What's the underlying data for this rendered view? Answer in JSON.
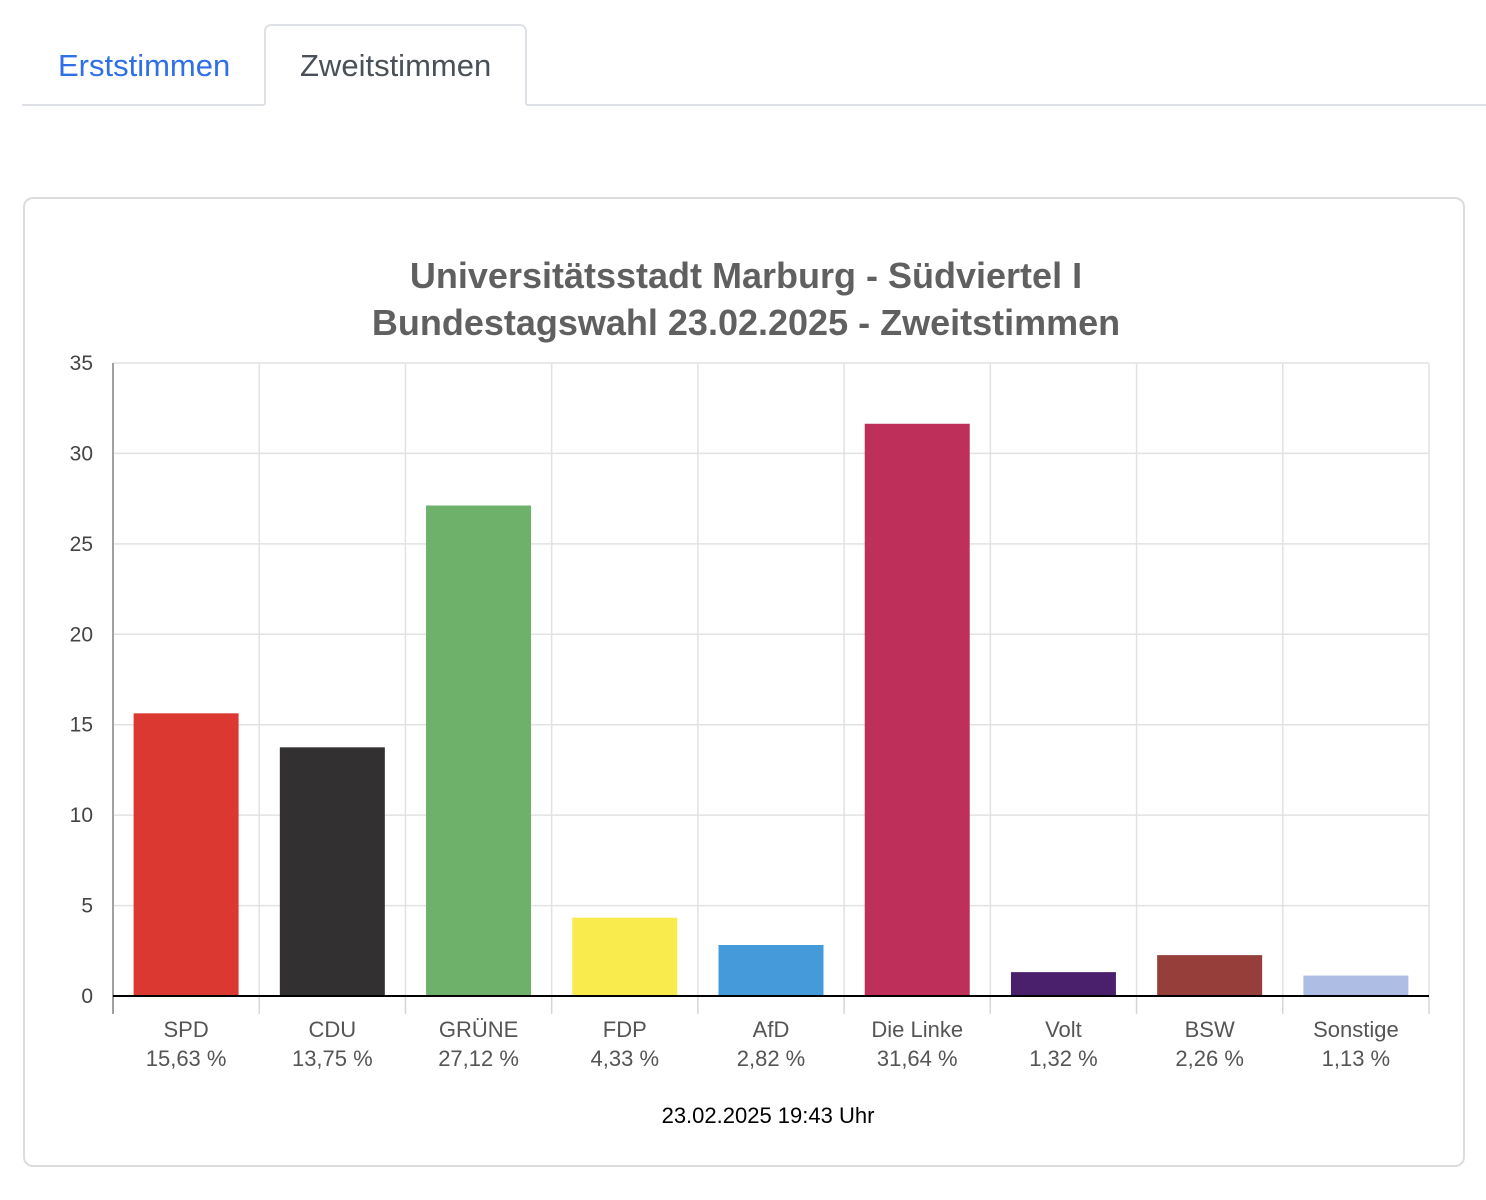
{
  "tabs": [
    {
      "label": "Erststimmen",
      "active": false
    },
    {
      "label": "Zweitstimmen",
      "active": true
    }
  ],
  "chart_data": {
    "type": "bar",
    "title_line1": "Universitätsstadt Marburg - Südviertel I",
    "title_line2": "Bundestagswahl 23.02.2025  - Zweitstimmen",
    "categories": [
      "SPD",
      "CDU",
      "GRÜNE",
      "FDP",
      "AfD",
      "Die Linke",
      "Volt",
      "BSW",
      "Sonstige"
    ],
    "category_value_labels": [
      "15,63 %",
      "13,75 %",
      "27,12 %",
      "4,33 %",
      "2,82 %",
      "31,64 %",
      "1,32 %",
      "2,26 %",
      "1,13 %"
    ],
    "values": [
      15.63,
      13.75,
      27.12,
      4.33,
      2.82,
      31.64,
      1.32,
      2.26,
      1.13
    ],
    "colors": [
      "#dc3832",
      "#323031",
      "#6db16a",
      "#f9eb4d",
      "#459bd9",
      "#be305a",
      "#4a206d",
      "#963f3a",
      "#aebde3"
    ],
    "ylim": [
      0,
      35
    ],
    "yticks": [
      0,
      5,
      10,
      15,
      20,
      25,
      30,
      35
    ],
    "grid": true,
    "xlabel": "",
    "ylabel": "",
    "footer": "23.02.2025 19:43 Uhr"
  }
}
